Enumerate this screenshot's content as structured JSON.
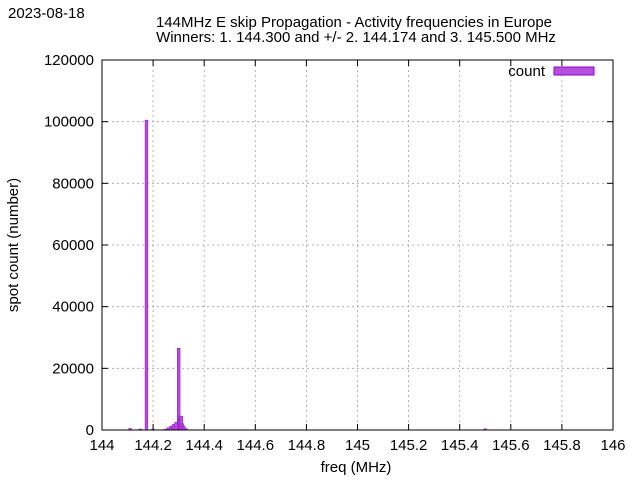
{
  "date_label": "2023-08-18",
  "colors": {
    "bar_fill": "#b450dc",
    "bar_stroke": "#9400d3",
    "grid": "#a0a0a0",
    "axis": "#000000"
  },
  "chart_data": {
    "type": "bar",
    "title": "144MHz E skip Propagation - Activity frequencies in Europe",
    "subtitle": "Winners: 1. 144.300 and +/- 2. 144.174 and 3. 145.500 MHz",
    "xlabel": "freq (MHz)",
    "ylabel": "spot count (number)",
    "xlim": [
      144,
      146
    ],
    "ylim": [
      0,
      120000
    ],
    "xticks": [
      "144",
      "144.2",
      "144.4",
      "144.6",
      "144.8",
      "145",
      "145.2",
      "145.4",
      "145.6",
      "145.8",
      "146"
    ],
    "yticks": [
      "0",
      "20000",
      "40000",
      "60000",
      "80000",
      "100000",
      "120000"
    ],
    "grid": true,
    "legend": {
      "position": "top-right",
      "entries": [
        "count"
      ]
    },
    "series": [
      {
        "name": "count",
        "x": [
          144.11,
          144.15,
          144.174,
          144.2,
          144.25,
          144.26,
          144.27,
          144.28,
          144.29,
          144.3,
          144.305,
          144.31,
          144.315,
          144.32,
          144.33,
          145.5
        ],
        "values": [
          500,
          300,
          100500,
          300,
          300,
          700,
          1200,
          1800,
          2500,
          26500,
          4000,
          4500,
          2000,
          1200,
          400,
          400
        ]
      }
    ]
  }
}
